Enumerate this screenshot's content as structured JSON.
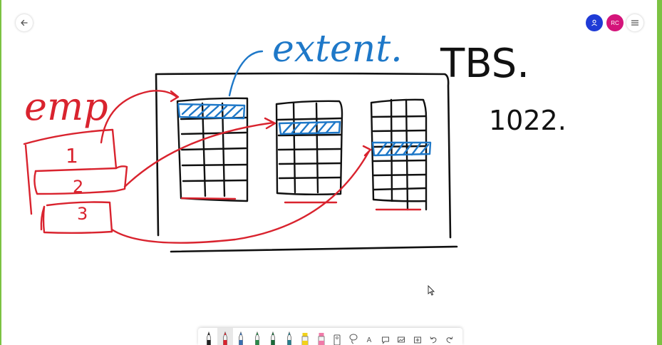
{
  "header": {
    "back_icon": "arrow-left-icon",
    "menu_icon": "hamburger-menu-icon"
  },
  "participants": [
    {
      "initials": "",
      "icon": "person-icon",
      "color": "#1f3bd6"
    },
    {
      "initials": "RC",
      "color": "#d4147a"
    }
  ],
  "canvas": {
    "ink_colors": {
      "black": "#111111",
      "red": "#d9232e",
      "blue": "#1e78c8"
    },
    "labels": {
      "extent": "extent.",
      "tbs": "TBS.",
      "number": "1022.",
      "emp": "emp",
      "rows": [
        "1",
        "2",
        "3"
      ]
    }
  },
  "toolbar": {
    "tools": [
      {
        "name": "black-pen",
        "icon": "pen-icon",
        "color": "#222222",
        "selected": false
      },
      {
        "name": "red-pen",
        "icon": "pen-icon",
        "color": "#d9232e",
        "selected": true
      },
      {
        "name": "blue-pen",
        "icon": "pen-icon",
        "color": "#3a6fb0",
        "selected": false
      },
      {
        "name": "green-pen",
        "icon": "pen-icon",
        "color": "#2c8a4a",
        "selected": false
      },
      {
        "name": "dark-green-pen",
        "icon": "pen-icon",
        "color": "#1b6b3a",
        "selected": false
      },
      {
        "name": "teal-pen",
        "icon": "pen-icon",
        "color": "#2a7d8c",
        "selected": false
      },
      {
        "name": "yellow-highlighter",
        "icon": "highlighter-icon",
        "color": "#f2d21b",
        "selected": false
      },
      {
        "name": "pink-highlighter",
        "icon": "highlighter-icon",
        "color": "#f07aa8",
        "selected": false
      },
      {
        "name": "ruler",
        "icon": "ruler-icon",
        "color": "#555555",
        "selected": false
      },
      {
        "name": "lasso",
        "icon": "lasso-icon",
        "color": "#555555",
        "selected": false
      },
      {
        "name": "text",
        "icon": "text-icon",
        "label": "A",
        "color": "#555555",
        "selected": false
      },
      {
        "name": "note",
        "icon": "sticky-note-icon",
        "color": "#555555",
        "selected": false
      },
      {
        "name": "image",
        "icon": "image-icon",
        "color": "#555555",
        "selected": false
      },
      {
        "name": "add",
        "icon": "plus-box-icon",
        "color": "#555555",
        "selected": false
      },
      {
        "name": "undo",
        "icon": "undo-icon",
        "color": "#555555",
        "selected": false
      },
      {
        "name": "redo",
        "icon": "redo-icon",
        "color": "#555555",
        "selected": false
      }
    ]
  }
}
